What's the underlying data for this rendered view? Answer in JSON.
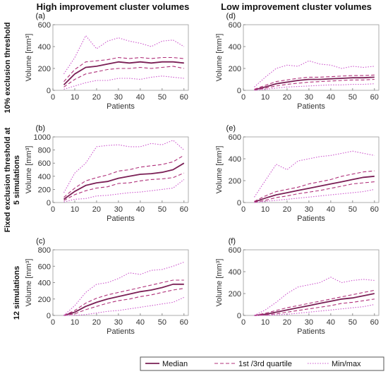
{
  "figure": {
    "col_titles": [
      "High improvement cluster volumes",
      "Low improvement cluster volumes"
    ],
    "row_titles": [
      [
        "10% exclusion threshold"
      ],
      [
        "Fixed exclusion threshold at",
        "5 simulations"
      ],
      [
        "12 simulations"
      ]
    ],
    "line_color": "#7a1f55",
    "dash_color": "#b0307a",
    "minmax_color": "#cc55cc"
  },
  "legend": {
    "items": [
      {
        "label": "Median",
        "style": "solid"
      },
      {
        "label": "1st /3rd quartile",
        "style": "dashed"
      },
      {
        "label": "Min/max",
        "style": "dotted"
      }
    ]
  },
  "chart_data": [
    {
      "panel": "(a)",
      "type": "line",
      "xlabel": "Patients",
      "ylabel": "Volume [mm³]",
      "xlim": [
        0,
        62
      ],
      "ylim": [
        0,
        600
      ],
      "xticks": [
        0,
        10,
        20,
        30,
        40,
        50,
        60
      ],
      "yticks": [
        0,
        200,
        400,
        600
      ],
      "x": [
        5,
        10,
        15,
        20,
        25,
        30,
        35,
        40,
        45,
        50,
        55,
        60
      ],
      "series": [
        {
          "name": "Median",
          "values": [
            50,
            150,
            210,
            220,
            240,
            260,
            250,
            260,
            250,
            260,
            260,
            250
          ]
        },
        {
          "name": "1st /3rd quartile",
          "values": [
            80,
            190,
            260,
            270,
            280,
            300,
            290,
            300,
            290,
            300,
            300,
            290
          ]
        },
        {
          "name": "1st /3rd quartile",
          "values": [
            30,
            100,
            150,
            170,
            190,
            200,
            200,
            210,
            200,
            210,
            220,
            200
          ]
        },
        {
          "name": "Min/max",
          "values": [
            150,
            300,
            500,
            380,
            450,
            480,
            450,
            430,
            400,
            450,
            460,
            400
          ]
        },
        {
          "name": "Min/max",
          "values": [
            10,
            40,
            70,
            90,
            90,
            110,
            110,
            100,
            120,
            130,
            120,
            110
          ]
        }
      ]
    },
    {
      "panel": "(d)",
      "type": "line",
      "xlabel": "Patients",
      "ylabel": "Volume [mm³]",
      "xlim": [
        0,
        62
      ],
      "ylim": [
        0,
        600
      ],
      "xticks": [
        0,
        10,
        20,
        30,
        40,
        50,
        60
      ],
      "yticks": [
        0,
        200,
        400,
        600
      ],
      "x": [
        5,
        10,
        15,
        20,
        25,
        30,
        35,
        40,
        45,
        50,
        55,
        60
      ],
      "series": [
        {
          "name": "Median",
          "values": [
            5,
            30,
            60,
            75,
            90,
            100,
            100,
            105,
            110,
            115,
            115,
            120
          ]
        },
        {
          "name": "1st /3rd quartile",
          "values": [
            10,
            45,
            80,
            95,
            110,
            120,
            120,
            125,
            130,
            135,
            135,
            140
          ]
        },
        {
          "name": "1st /3rd quartile",
          "values": [
            2,
            20,
            40,
            55,
            65,
            75,
            80,
            85,
            90,
            95,
            95,
            100
          ]
        },
        {
          "name": "Min/max",
          "values": [
            30,
            120,
            200,
            230,
            220,
            270,
            240,
            230,
            200,
            220,
            210,
            220
          ]
        },
        {
          "name": "Min/max",
          "values": [
            0,
            10,
            20,
            30,
            35,
            40,
            45,
            50,
            50,
            55,
            55,
            60
          ]
        }
      ]
    },
    {
      "panel": "(b)",
      "type": "line",
      "xlabel": "Patients",
      "ylabel": "Volume [mm³]",
      "xlim": [
        0,
        62
      ],
      "ylim": [
        0,
        1000
      ],
      "xticks": [
        0,
        10,
        20,
        30,
        40,
        50,
        60
      ],
      "yticks": [
        0,
        200,
        400,
        600,
        800,
        1000
      ],
      "x": [
        5,
        10,
        15,
        20,
        25,
        30,
        35,
        40,
        45,
        50,
        55,
        60
      ],
      "series": [
        {
          "name": "Median",
          "values": [
            50,
            170,
            260,
            300,
            320,
            370,
            400,
            430,
            440,
            460,
            500,
            600
          ]
        },
        {
          "name": "1st /3rd quartile",
          "values": [
            80,
            220,
            330,
            380,
            420,
            480,
            500,
            540,
            560,
            580,
            620,
            720
          ]
        },
        {
          "name": "1st /3rd quartile",
          "values": [
            30,
            120,
            180,
            220,
            240,
            290,
            300,
            330,
            350,
            360,
            380,
            450
          ]
        },
        {
          "name": "Min/max",
          "values": [
            150,
            450,
            600,
            850,
            870,
            880,
            850,
            850,
            900,
            880,
            950,
            800
          ]
        },
        {
          "name": "Min/max",
          "values": [
            10,
            50,
            60,
            100,
            110,
            130,
            150,
            160,
            180,
            200,
            220,
            350
          ]
        }
      ]
    },
    {
      "panel": "(e)",
      "type": "line",
      "xlabel": "Patients",
      "ylabel": "Volume [mm³]",
      "xlim": [
        0,
        62
      ],
      "ylim": [
        0,
        600
      ],
      "xticks": [
        0,
        10,
        20,
        30,
        40,
        50,
        60
      ],
      "yticks": [
        0,
        200,
        400,
        600
      ],
      "x": [
        5,
        10,
        15,
        20,
        25,
        30,
        35,
        40,
        45,
        50,
        55,
        60
      ],
      "series": [
        {
          "name": "Median",
          "values": [
            5,
            40,
            70,
            90,
            110,
            130,
            150,
            170,
            190,
            210,
            230,
            240
          ]
        },
        {
          "name": "1st /3rd quartile",
          "values": [
            10,
            60,
            100,
            120,
            140,
            170,
            190,
            210,
            240,
            260,
            280,
            290
          ]
        },
        {
          "name": "1st /3rd quartile",
          "values": [
            2,
            20,
            45,
            60,
            80,
            95,
            110,
            130,
            150,
            170,
            180,
            190
          ]
        },
        {
          "name": "Min/max",
          "values": [
            50,
            200,
            350,
            300,
            380,
            400,
            420,
            430,
            450,
            470,
            450,
            430
          ]
        },
        {
          "name": "Min/max",
          "values": [
            0,
            10,
            20,
            30,
            40,
            50,
            60,
            70,
            80,
            90,
            100,
            120
          ]
        }
      ]
    },
    {
      "panel": "(c)",
      "type": "line",
      "xlabel": "Patients",
      "ylabel": "Volume [mm³]",
      "xlim": [
        0,
        62
      ],
      "ylim": [
        0,
        800
      ],
      "xticks": [
        0,
        10,
        20,
        30,
        40,
        50,
        60
      ],
      "yticks": [
        0,
        200,
        400,
        600,
        800
      ],
      "x": [
        5,
        10,
        15,
        20,
        25,
        30,
        35,
        40,
        45,
        50,
        55,
        60
      ],
      "series": [
        {
          "name": "Median",
          "values": [
            0,
            40,
            110,
            160,
            200,
            230,
            260,
            290,
            310,
            340,
            380,
            380
          ]
        },
        {
          "name": "1st /3rd quartile",
          "values": [
            0,
            60,
            150,
            210,
            250,
            280,
            310,
            340,
            370,
            400,
            430,
            430
          ]
        },
        {
          "name": "1st /3rd quartile",
          "values": [
            0,
            20,
            70,
            110,
            150,
            180,
            200,
            230,
            250,
            280,
            310,
            330
          ]
        },
        {
          "name": "Min/max",
          "values": [
            0,
            120,
            280,
            380,
            400,
            450,
            520,
            500,
            550,
            560,
            600,
            650
          ]
        },
        {
          "name": "Min/max",
          "values": [
            0,
            0,
            10,
            30,
            50,
            60,
            80,
            100,
            120,
            140,
            160,
            220
          ]
        }
      ]
    },
    {
      "panel": "(f)",
      "type": "line",
      "xlabel": "Patients",
      "ylabel": "Volume [mm³]",
      "xlim": [
        0,
        62
      ],
      "ylim": [
        0,
        600
      ],
      "xticks": [
        0,
        10,
        20,
        30,
        40,
        50,
        60
      ],
      "yticks": [
        0,
        200,
        400,
        600
      ],
      "x": [
        5,
        10,
        15,
        20,
        25,
        30,
        35,
        40,
        45,
        50,
        55,
        60
      ],
      "series": [
        {
          "name": "Median",
          "values": [
            0,
            10,
            30,
            50,
            70,
            90,
            110,
            130,
            150,
            160,
            180,
            200
          ]
        },
        {
          "name": "1st /3rd quartile",
          "values": [
            0,
            20,
            45,
            70,
            90,
            110,
            130,
            150,
            170,
            190,
            210,
            230
          ]
        },
        {
          "name": "1st /3rd quartile",
          "values": [
            0,
            5,
            15,
            30,
            45,
            60,
            75,
            90,
            110,
            120,
            135,
            150
          ]
        },
        {
          "name": "Min/max",
          "values": [
            0,
            50,
            120,
            200,
            260,
            280,
            300,
            350,
            300,
            320,
            330,
            320
          ]
        },
        {
          "name": "Min/max",
          "values": [
            0,
            0,
            5,
            10,
            20,
            30,
            40,
            50,
            60,
            70,
            80,
            100
          ]
        }
      ]
    }
  ]
}
